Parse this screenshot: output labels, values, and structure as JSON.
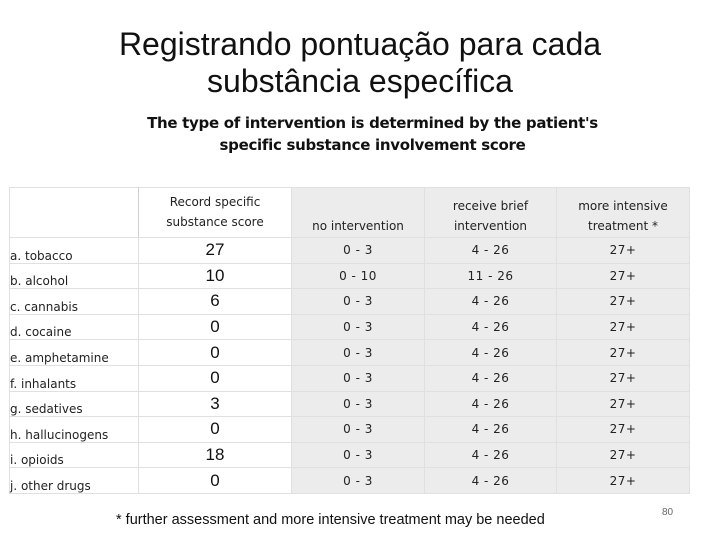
{
  "slide": {
    "title_line1": "Registrando pontuação para cada",
    "title_line2": "substância específica",
    "subtitle_line1": "The type of intervention is determined by the patient's",
    "subtitle_line2": "specific substance involvement score",
    "footnote": "* further assessment and more intensive treatment may be needed",
    "slide_number": "80"
  },
  "table": {
    "headers": {
      "score_line1": "Record specific",
      "score_line2": "substance score",
      "none_line1": "",
      "none_line2": "no intervention",
      "brief_line1": "receive brief",
      "brief_line2": "intervention",
      "intensive_line1": "more intensive",
      "intensive_line2": "treatment *"
    },
    "rows": [
      {
        "substance": "a. tobacco",
        "score": "27",
        "none": "0 - 3",
        "brief": "4 - 26",
        "intensive": "27+"
      },
      {
        "substance": "b. alcohol",
        "score": "10",
        "none": "0 - 10",
        "brief": "11 - 26",
        "intensive": "27+"
      },
      {
        "substance": "c. cannabis",
        "score": "6",
        "none": "0 - 3",
        "brief": "4 - 26",
        "intensive": "27+"
      },
      {
        "substance": "d. cocaine",
        "score": "0",
        "none": "0 - 3",
        "brief": "4 - 26",
        "intensive": "27+"
      },
      {
        "substance": "e. amphetamine",
        "score": "0",
        "none": "0 - 3",
        "brief": "4 - 26",
        "intensive": "27+"
      },
      {
        "substance": "f. inhalants",
        "score": "0",
        "none": "0 - 3",
        "brief": "4 - 26",
        "intensive": "27+"
      },
      {
        "substance": "g. sedatives",
        "score": "3",
        "none": "0 - 3",
        "brief": "4 - 26",
        "intensive": "27+"
      },
      {
        "substance": "h. hallucinogens",
        "score": "0",
        "none": "0 - 3",
        "brief": "4 - 26",
        "intensive": "27+"
      },
      {
        "substance": "i. opioids",
        "score": "18",
        "none": "0 - 3",
        "brief": "4 - 26",
        "intensive": "27+"
      },
      {
        "substance": "j. other drugs",
        "score": "0",
        "none": "0 - 3",
        "brief": "4 - 26",
        "intensive": "27+"
      }
    ]
  }
}
